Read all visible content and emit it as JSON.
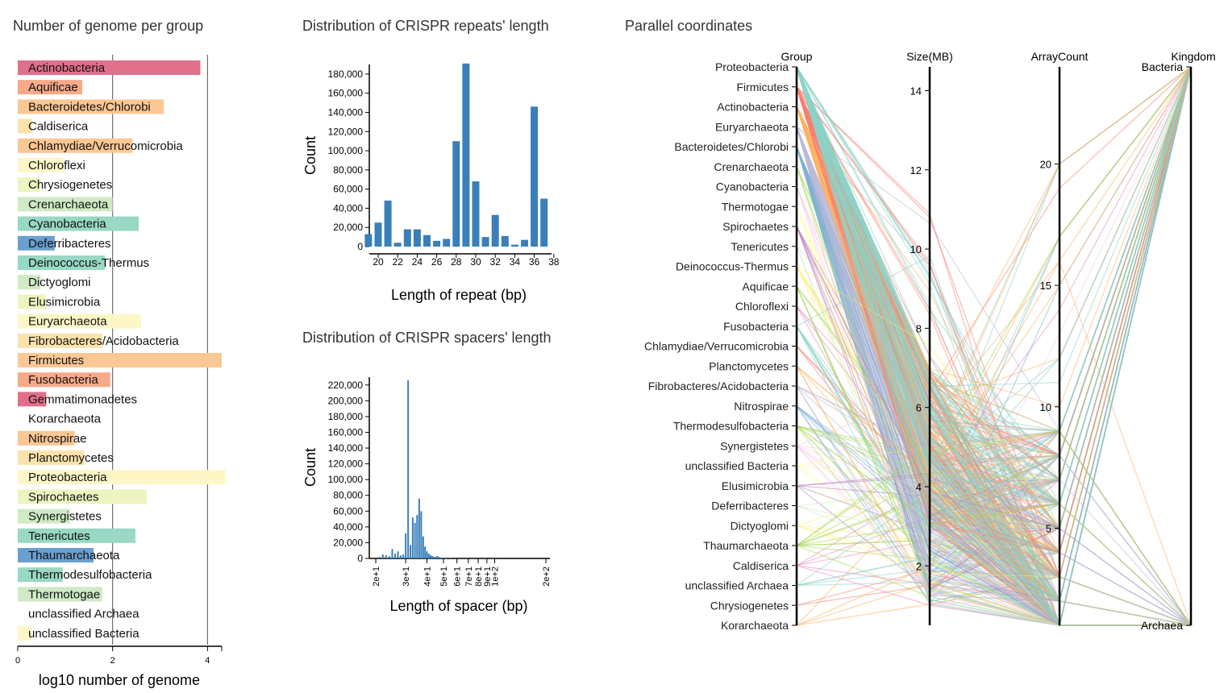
{
  "panels": {
    "genome_title": "Number of genome per group",
    "repeat_title": "Distribution of CRISPR repeats' length",
    "spacer_title": "Distribution of CRISPR spacers' length",
    "parallel_title": "Parallel coordinates"
  },
  "chart_data": [
    {
      "type": "bar",
      "orientation": "horizontal",
      "title": "Number of genome per group",
      "xlabel": "log10 number of genome",
      "xlim": [
        0,
        4.3
      ],
      "xticks": [
        "0",
        "2",
        "4"
      ],
      "gridlines": [
        2,
        4
      ],
      "categories": [
        "Actinobacteria",
        "Aquificae",
        "Bacteroidetes/Chlorobi",
        "Caldiserica",
        "Chlamydiae/Verrucomicrobia",
        "Chloroflexi",
        "Chrysiogenetes",
        "Crenarchaeota",
        "Cyanobacteria",
        "Deferribacteres",
        "Deinococcus-Thermus",
        "Dictyoglomi",
        "Elusimicrobia",
        "Euryarchaeota",
        "Fibrobacteres/Acidobacteria",
        "Firmicutes",
        "Fusobacteria",
        "Gemmatimonadetes",
        "Korarchaeota",
        "Nitrospirae",
        "Planctomycetes",
        "Proteobacteria",
        "Spirochaetes",
        "Synergistetes",
        "Tenericutes",
        "Thaumarchaeota",
        "Thermodesulfobacteria",
        "Thermotogae",
        "unclassified Archaea",
        "unclassified Bacteria"
      ],
      "values": [
        3.85,
        1.36,
        3.08,
        0.3,
        2.42,
        0.98,
        0.48,
        2.0,
        2.55,
        0.78,
        1.84,
        0.48,
        0.6,
        2.6,
        1.78,
        4.3,
        1.95,
        0.6,
        0.0,
        1.2,
        1.4,
        4.38,
        2.72,
        1.1,
        2.48,
        1.6,
        0.95,
        1.78,
        0.0,
        0.3
      ],
      "colors": [
        "#e0708a",
        "#f7a98a",
        "#fac795",
        "#fde3ab",
        "#fac795",
        "#fdf7c8",
        "#eef4c0",
        "#cfeac5",
        "#98d8c5",
        "#6a9fcf",
        "#98d8c5",
        "#cfeac5",
        "#eef4c0",
        "#fdf7c8",
        "#fde3ab",
        "#fac795",
        "#f7a98a",
        "#e0708a",
        "#ffffff",
        "#fac795",
        "#fde3ab",
        "#fdf7c8",
        "#eef4c0",
        "#cfeac5",
        "#98d8c5",
        "#6a9fcf",
        "#98d8c5",
        "#cfeac5",
        "#fdf7c8",
        "#fdf7c8"
      ]
    },
    {
      "type": "bar",
      "title": "Distribution of CRISPR repeats' length",
      "xlabel": "Length of repeat (bp)",
      "ylabel": "Count",
      "ylim": [
        0,
        190000
      ],
      "yticks": [
        "0",
        "20,000",
        "40,000",
        "60,000",
        "80,000",
        "100,000",
        "120,000",
        "140,000",
        "160,000",
        "180,000"
      ],
      "xticks": [
        "20",
        "22",
        "24",
        "26",
        "28",
        "30",
        "32",
        "34",
        "36",
        "38"
      ],
      "x": [
        19,
        20,
        21,
        22,
        23,
        24,
        25,
        26,
        27,
        28,
        29,
        30,
        31,
        32,
        33,
        34,
        35,
        36,
        37
      ],
      "values": [
        13000,
        25000,
        48000,
        4000,
        18000,
        18000,
        12000,
        6000,
        8000,
        110000,
        191000,
        68000,
        10000,
        33000,
        11000,
        2000,
        7000,
        146000,
        50000
      ],
      "color": "#3a7fb9"
    },
    {
      "type": "bar",
      "title": "Distribution of CRISPR spacers' length",
      "xlabel": "Length of spacer (bp)",
      "ylabel": "Count",
      "x_scale": "log",
      "ylim": [
        0,
        230000
      ],
      "yticks": [
        "0",
        "20,000",
        "40,000",
        "60,000",
        "80,000",
        "100,000",
        "120,000",
        "140,000",
        "160,000",
        "180,000",
        "200,000",
        "220,000"
      ],
      "xticks": [
        "2e+1",
        "3e+1",
        "4e+1",
        "5e+1",
        "6e+1",
        "7e+1",
        "8e+1",
        "9e+1",
        "1e+2",
        "2e+2"
      ],
      "x": [
        21,
        22,
        23,
        24,
        25,
        26,
        27,
        28,
        29,
        30,
        31,
        32,
        33,
        34,
        35,
        36,
        37,
        38,
        39,
        40,
        41,
        42,
        43,
        44,
        45,
        46,
        47,
        48,
        50,
        52,
        55
      ],
      "values": [
        2000,
        5000,
        4000,
        3000,
        12000,
        6000,
        9000,
        4000,
        5000,
        32000,
        226000,
        17000,
        52000,
        45000,
        55000,
        76000,
        60000,
        28000,
        15000,
        9000,
        6000,
        4000,
        3000,
        2000,
        2000,
        3000,
        2000,
        1000,
        1000,
        1000,
        500
      ],
      "color": "#3a7fb9"
    },
    {
      "type": "parallel_coordinates",
      "title": "Parallel coordinates",
      "axes": [
        "Group",
        "Size(MB)",
        "ArrayCount",
        "Kingdom"
      ],
      "group_categories": [
        "Proteobacteria",
        "Firmicutes",
        "Actinobacteria",
        "Euryarchaeota",
        "Bacteroidetes/Chlorobi",
        "Crenarchaeota",
        "Cyanobacteria",
        "Thermotogae",
        "Spirochaetes",
        "Tenericutes",
        "Deinococcus-Thermus",
        "Aquificae",
        "Chloroflexi",
        "Fusobacteria",
        "Chlamydiae/Verrucomicrobia",
        "Planctomycetes",
        "Fibrobacteres/Acidobacteria",
        "Nitrospirae",
        "Thermodesulfobacteria",
        "Synergistetes",
        "unclassified Bacteria",
        "Elusimicrobia",
        "Deferribacteres",
        "Dictyoglomi",
        "Thaumarchaeota",
        "Caldiserica",
        "unclassified Archaea",
        "Chrysiogenetes",
        "Korarchaeota"
      ],
      "size_ticks": [
        "2",
        "4",
        "6",
        "8",
        "10",
        "12",
        "14"
      ],
      "size_range": [
        0.5,
        14.6
      ],
      "array_ticks": [
        "5",
        "10",
        "15",
        "20"
      ],
      "array_range": [
        1,
        24
      ],
      "kingdom_categories": [
        "Bacteria",
        "Archaea"
      ],
      "palette": [
        "#8dd3c7",
        "#fb8072",
        "#fdb462",
        "#bebada",
        "#80b1d3",
        "#b3de69",
        "#fccde5",
        "#ffffb3",
        "#bc80bd",
        "#ccebc5",
        "#ffed6f",
        "#a6d854",
        "#e78ac3"
      ]
    }
  ]
}
